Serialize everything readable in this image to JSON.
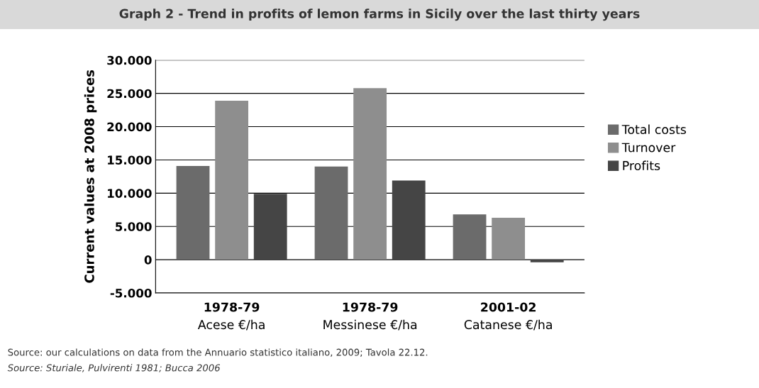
{
  "chart_data": {
    "type": "bar",
    "title": "Graph 2 - Trend in profits of lemon farms in Sicily over the last thirty years",
    "ylabel": "Current values at 2008 prices",
    "categories": [
      "1978-79\nAcese €/ha",
      "1978-79\nMessinese €/ha",
      "2001-02\nCatanese €/ha"
    ],
    "series": [
      {
        "name": "Total costs",
        "color": "#6b6b6b",
        "values": [
          14100,
          14000,
          6800
        ]
      },
      {
        "name": "Turnover",
        "color": "#8e8e8e",
        "values": [
          23900,
          25800,
          6300
        ]
      },
      {
        "name": "Profits",
        "color": "#454545",
        "values": [
          9900,
          11900,
          -400
        ]
      }
    ],
    "ylim": [
      -5000,
      30000
    ],
    "yticks": [
      {
        "value": -5000,
        "label": "-5.000"
      },
      {
        "value": 0,
        "label": "0"
      },
      {
        "value": 5000,
        "label": "5.000"
      },
      {
        "value": 10000,
        "label": "10.000"
      },
      {
        "value": 15000,
        "label": "15.000"
      },
      {
        "value": 20000,
        "label": "20.000"
      },
      {
        "value": 25000,
        "label": "25.000"
      },
      {
        "value": 30000,
        "label": "30.000"
      }
    ],
    "grid": "y",
    "legend": "right",
    "annotations": [
      "Source: our calculations on data from the Annuario statistico italiano, 2009; Tavola 22.12.",
      "Source: Sturiale, Pulvirenti 1981; Bucca 2006"
    ]
  }
}
